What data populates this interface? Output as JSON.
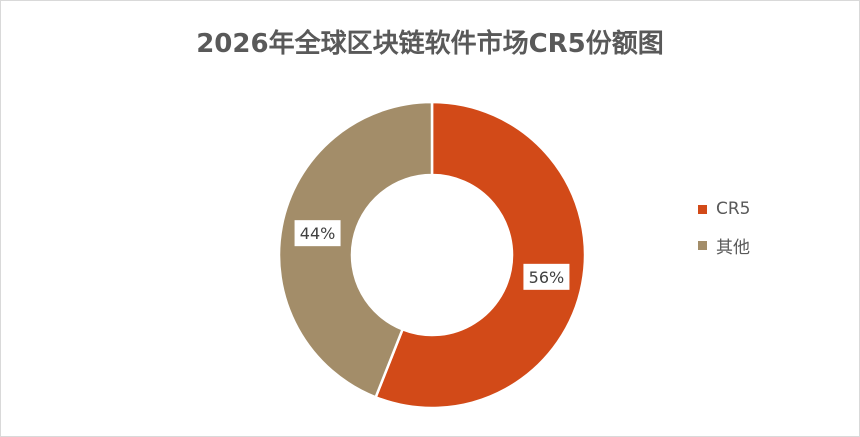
{
  "chart_data": {
    "type": "pie",
    "subtype": "donut",
    "title": "2026年全球区块链软件市场CR5份额图",
    "categories": [
      "CR5",
      "其他"
    ],
    "values": [
      56,
      44
    ],
    "data_labels": [
      "56%",
      "44%"
    ],
    "colors": [
      "#D24A18",
      "#A38D69"
    ],
    "legend_position": "right"
  }
}
